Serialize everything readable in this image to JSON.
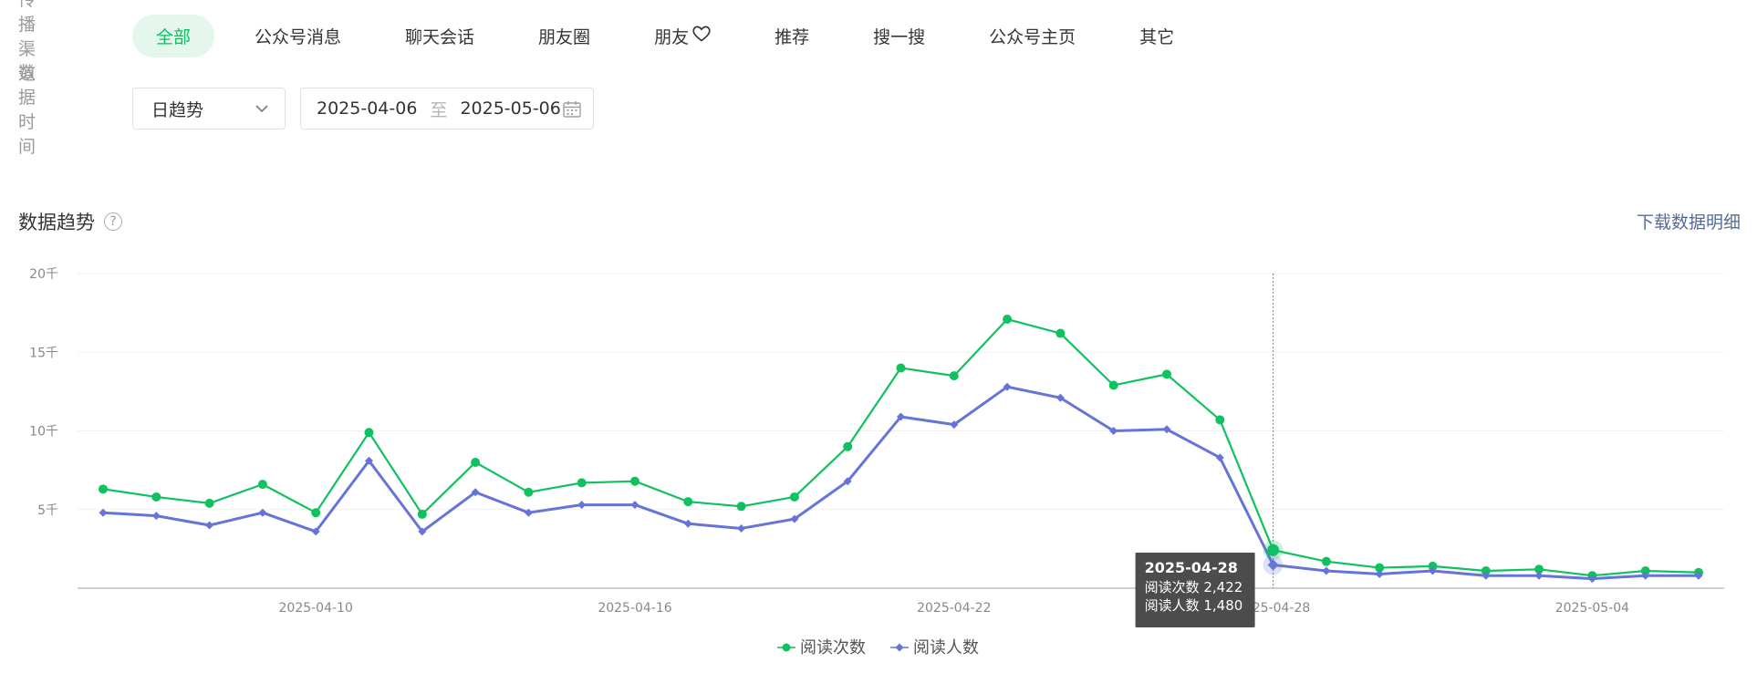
{
  "filters": {
    "channel_label": "传播渠道",
    "channels": [
      {
        "label": "全部",
        "active": true
      },
      {
        "label": "公众号消息",
        "active": false
      },
      {
        "label": "聊天会话",
        "active": false
      },
      {
        "label": "朋友圈",
        "active": false
      },
      {
        "label": "朋友",
        "active": false,
        "icon": "heart-icon"
      },
      {
        "label": "推荐",
        "active": false
      },
      {
        "label": "搜一搜",
        "active": false
      },
      {
        "label": "公众号主页",
        "active": false
      },
      {
        "label": "其它",
        "active": false
      }
    ],
    "time_label": "数据时间",
    "granularity": "日趋势",
    "start_date": "2025-04-06",
    "range_separator": "至",
    "end_date": "2025-05-06"
  },
  "section": {
    "title": "数据趋势",
    "help_icon": "question-circle-icon",
    "download_label": "下载数据明细"
  },
  "colors": {
    "accent": "#07c160",
    "series_reads": "#0fc15f",
    "series_readers": "#6674d9",
    "link": "#576b95",
    "tooltip_bg": "#4c4c4c"
  },
  "chart_data": {
    "type": "line",
    "x": [
      "2025-04-06",
      "2025-04-07",
      "2025-04-08",
      "2025-04-09",
      "2025-04-10",
      "2025-04-11",
      "2025-04-12",
      "2025-04-13",
      "2025-04-14",
      "2025-04-15",
      "2025-04-16",
      "2025-04-17",
      "2025-04-18",
      "2025-04-19",
      "2025-04-20",
      "2025-04-21",
      "2025-04-22",
      "2025-04-23",
      "2025-04-24",
      "2025-04-25",
      "2025-04-26",
      "2025-04-27",
      "2025-04-28",
      "2025-04-29",
      "2025-04-30",
      "2025-05-01",
      "2025-05-02",
      "2025-05-03",
      "2025-05-04",
      "2025-05-05",
      "2025-05-06"
    ],
    "x_tick_labels": [
      "2025-04-10",
      "2025-04-16",
      "2025-04-22",
      "2025-04-28",
      "2025-05-04"
    ],
    "y_tick_labels": [
      "5千",
      "10千",
      "15千",
      "20千"
    ],
    "y_ticks": [
      5000,
      10000,
      15000,
      20000
    ],
    "ylim": [
      0,
      20000
    ],
    "grid": true,
    "legend_position": "bottom-center",
    "series": [
      {
        "name": "阅读次数",
        "marker": "circle",
        "values": [
          6300,
          5800,
          5400,
          6600,
          4800,
          9900,
          4700,
          8000,
          6100,
          6700,
          6800,
          5500,
          5200,
          5800,
          9000,
          14000,
          13500,
          17100,
          16200,
          12900,
          13600,
          10700,
          2422,
          1700,
          1300,
          1400,
          1100,
          1200,
          800,
          1100,
          1000
        ]
      },
      {
        "name": "阅读人数",
        "marker": "diamond",
        "values": [
          4800,
          4600,
          4000,
          4800,
          3600,
          8100,
          3600,
          6100,
          4800,
          5300,
          5300,
          4100,
          3800,
          4400,
          6800,
          10900,
          10400,
          12800,
          12100,
          10000,
          10100,
          8300,
          1480,
          1100,
          900,
          1100,
          800,
          800,
          600,
          800,
          800
        ]
      }
    ],
    "tooltip": {
      "date": "2025-04-28",
      "index": 22,
      "lines": [
        "阅读次数 2,422",
        "阅读人数 1,480"
      ]
    }
  }
}
